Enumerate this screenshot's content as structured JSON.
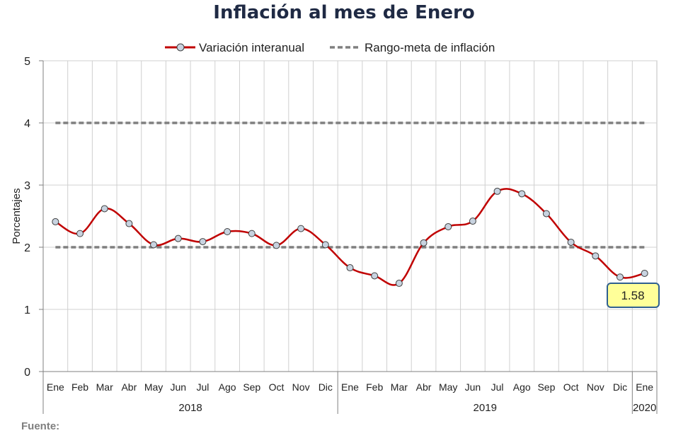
{
  "chart_data": {
    "type": "line",
    "title": "Inflación al mes de Enero",
    "ylabel": "Porcentajes",
    "xlabel": "",
    "ylim": [
      0,
      5
    ],
    "yticks": [
      "0",
      "1",
      "2",
      "3",
      "4",
      "5"
    ],
    "grid": true,
    "legend_position": "top",
    "categories": [
      "Ene",
      "Feb",
      "Mar",
      "Abr",
      "May",
      "Jun",
      "Jul",
      "Ago",
      "Sep",
      "Oct",
      "Nov",
      "Dic",
      "Ene",
      "Feb",
      "Mar",
      "Abr",
      "May",
      "Jun",
      "Jul",
      "Ago",
      "Sep",
      "Oct",
      "Nov",
      "Dic",
      "Ene"
    ],
    "years": [
      {
        "label": "2018",
        "count": 12
      },
      {
        "label": "2019",
        "count": 12
      },
      {
        "label": "2020",
        "count": 1
      }
    ],
    "series": [
      {
        "name": "Variación interanual",
        "color": "#c00000",
        "values": [
          2.41,
          2.22,
          2.62,
          2.38,
          2.04,
          2.14,
          2.09,
          2.25,
          2.22,
          2.03,
          2.3,
          2.04,
          1.67,
          1.54,
          1.42,
          2.07,
          2.33,
          2.42,
          2.9,
          2.86,
          2.54,
          2.08,
          1.86,
          1.52,
          1.58
        ]
      },
      {
        "name": "Rango-meta de inflación",
        "color": "#7f7f7f",
        "lower": 2,
        "upper": 4
      }
    ],
    "annotation": {
      "text": "1.58",
      "index": 24
    }
  },
  "footer": {
    "source_label": "Fuente:"
  },
  "colors": {
    "title": "#1f2a44",
    "callout_fill": "#ffff99",
    "callout_border": "#2f5f8f",
    "marker_fill": "#c8d3e0"
  }
}
